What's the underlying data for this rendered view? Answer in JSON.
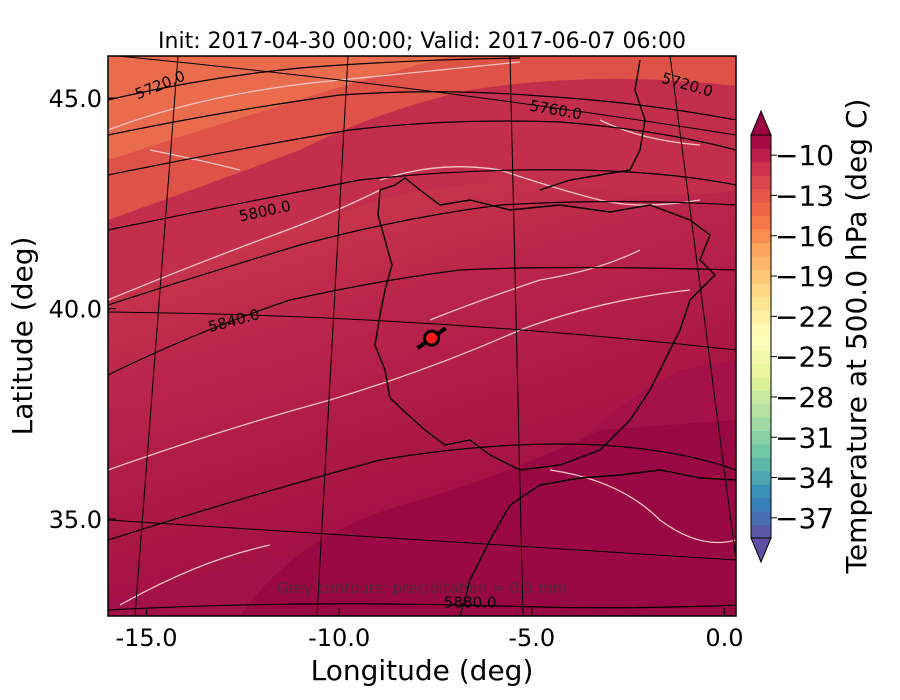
{
  "chart_data": {
    "type": "heatmap",
    "title": "Init: 2017-04-30 00:00; Valid: 2017-06-07 06:00",
    "xlabel": "Longitude (deg)",
    "ylabel": "Latitude (deg)",
    "xlim": [
      -16.0,
      0.3
    ],
    "ylim": [
      32.7,
      46.0
    ],
    "x_ticks": [
      {
        "value": -15.0,
        "label": "-15.0"
      },
      {
        "value": -10.0,
        "label": "-10.0"
      },
      {
        "value": -5.0,
        "label": "-5.0"
      },
      {
        "value": 0.0,
        "label": "0.0"
      }
    ],
    "y_ticks": [
      {
        "value": 35.0,
        "label": "35.0"
      },
      {
        "value": 40.0,
        "label": "40.0"
      },
      {
        "value": 45.0,
        "label": "45.0"
      }
    ],
    "contour_labels": [
      {
        "text": "5720.0",
        "lon": -14.6,
        "lat": 45.2,
        "angle": -22
      },
      {
        "text": "5720.0",
        "lon": -1.0,
        "lat": 45.2,
        "angle": 16
      },
      {
        "text": "5760.0",
        "lon": -4.4,
        "lat": 44.6,
        "angle": 10
      },
      {
        "text": "5800.0",
        "lon": -11.9,
        "lat": 42.2,
        "angle": -12
      },
      {
        "text": "5840.0",
        "lon": -12.7,
        "lat": 39.6,
        "angle": -15
      },
      {
        "text": "5880.0",
        "lon": -6.6,
        "lat": 32.9,
        "angle": 0
      }
    ],
    "note": "Grey contours: precipitation = 0.5 mm",
    "marker": {
      "lon": -7.6,
      "lat": 39.3
    },
    "colorbar": {
      "label": "Temperature at 500.0 hPa (deg C)",
      "min": -38.5,
      "max": -8.5,
      "ticks": [
        {
          "value": -10,
          "label": "−10"
        },
        {
          "value": -13,
          "label": "−13"
        },
        {
          "value": -16,
          "label": "−16"
        },
        {
          "value": -19,
          "label": "−19"
        },
        {
          "value": -22,
          "label": "−22"
        },
        {
          "value": -25,
          "label": "−25"
        },
        {
          "value": -28,
          "label": "−28"
        },
        {
          "value": -31,
          "label": "−31"
        },
        {
          "value": -34,
          "label": "−34"
        },
        {
          "value": -37,
          "label": "−37"
        }
      ],
      "colormap": "Spectral",
      "extend": "both"
    }
  }
}
